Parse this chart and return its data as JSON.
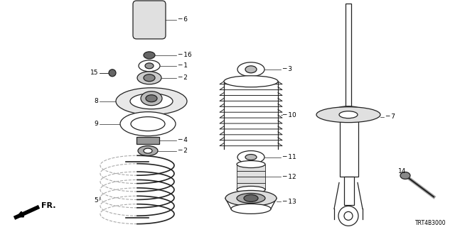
{
  "bg_color": "#ffffff",
  "diagram_code": "TRT4B3000",
  "fr_label": "FR.",
  "ec": "#222222",
  "gray1": "#555555",
  "gray2": "#888888",
  "gray3": "#bbbbbb",
  "gray4": "#dddddd"
}
